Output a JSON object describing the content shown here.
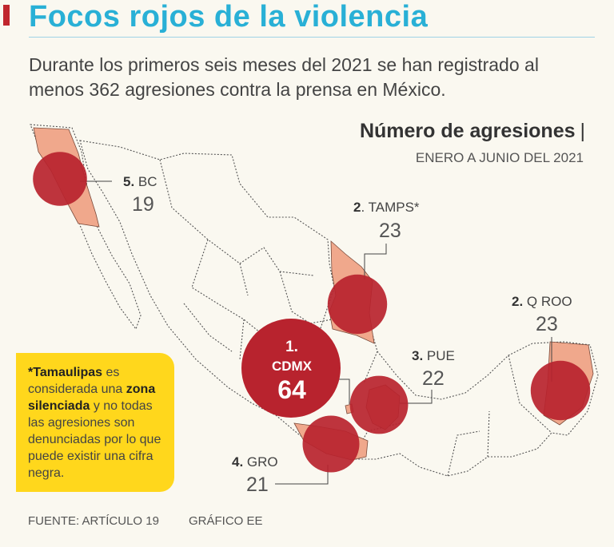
{
  "header": {
    "title": "Focos rojos de la violencia",
    "subtitle": "Durante los primeros seis meses del 2021 se han registrado al menos 362 agresiones contra la prensa en México."
  },
  "chart_data": {
    "type": "map",
    "title": "Número de agresiones",
    "title_separator": "|",
    "subtitle": "ENERO A JUNIO DEL 2021",
    "total": 362,
    "regions": [
      {
        "id": "cdmx",
        "rank": "1.",
        "state": "CDMX",
        "value": 64
      },
      {
        "id": "tamps",
        "rank": "2",
        "state": ". TAMPS*",
        "value": 23
      },
      {
        "id": "qroo",
        "rank": "2.",
        "state": " Q ROO",
        "value": 23
      },
      {
        "id": "pue",
        "rank": "3.",
        "state": " PUE",
        "value": 22
      },
      {
        "id": "gro",
        "rank": "4.",
        "state": " GRO",
        "value": 21
      },
      {
        "id": "bc",
        "rank": "5.",
        "state": " BC",
        "value": 19
      }
    ],
    "colors": {
      "bubble": "#b8232e",
      "highlight": "#f0a88c",
      "map_line": "#555555"
    }
  },
  "note": {
    "part1": "*Tamaulipas",
    "part2": " es considerada una ",
    "part3": "zona silenciada",
    "part4": " y no todas las agresiones son denunciadas por lo que puede existir una cifra negra."
  },
  "footer": {
    "source": "FUENTE: ARTÍCULO 19",
    "credit": "GRÁFICO EE"
  }
}
